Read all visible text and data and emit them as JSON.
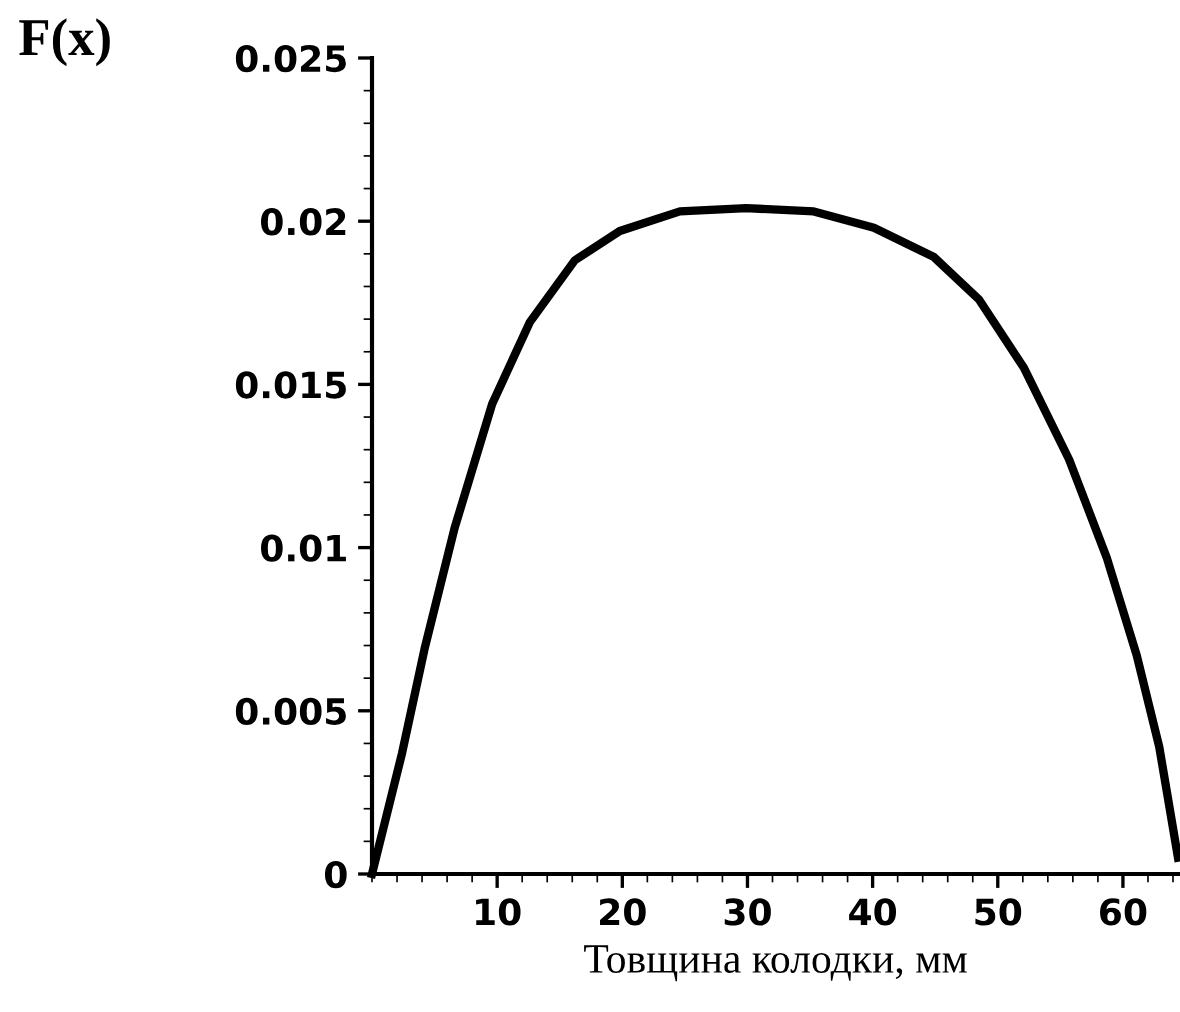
{
  "chart_data": {
    "type": "line",
    "ylabel": "F(x)",
    "xlabel": "Товщина колодки, мм",
    "series": [
      {
        "color": "#000000",
        "x": [
          0,
          2.4,
          4.2,
          6.6,
          9.6,
          12.6,
          16.2,
          19.8,
          24.6,
          29.9,
          35.3,
          40.1,
          44.9,
          48.5,
          52.1,
          55.7,
          58.7,
          61.1,
          62.9,
          64.4
        ],
        "values": [
          0,
          0.0037,
          0.0069,
          0.0106,
          0.0144,
          0.0169,
          0.0188,
          0.0197,
          0.0203,
          0.0204,
          0.0203,
          0.0198,
          0.0189,
          0.0176,
          0.0155,
          0.0127,
          0.0097,
          0.0067,
          0.0039,
          0.0005
        ]
      }
    ],
    "xlim": [
      0,
      64.5
    ],
    "ylim": [
      0,
      0.025
    ],
    "xticks": [
      10,
      20,
      30,
      40,
      50,
      60
    ],
    "yticks": [
      0,
      0.005,
      0.01,
      0.015,
      0.02,
      0.025
    ],
    "grid": false,
    "legend": false,
    "marker": "none",
    "line_style": "solid"
  }
}
